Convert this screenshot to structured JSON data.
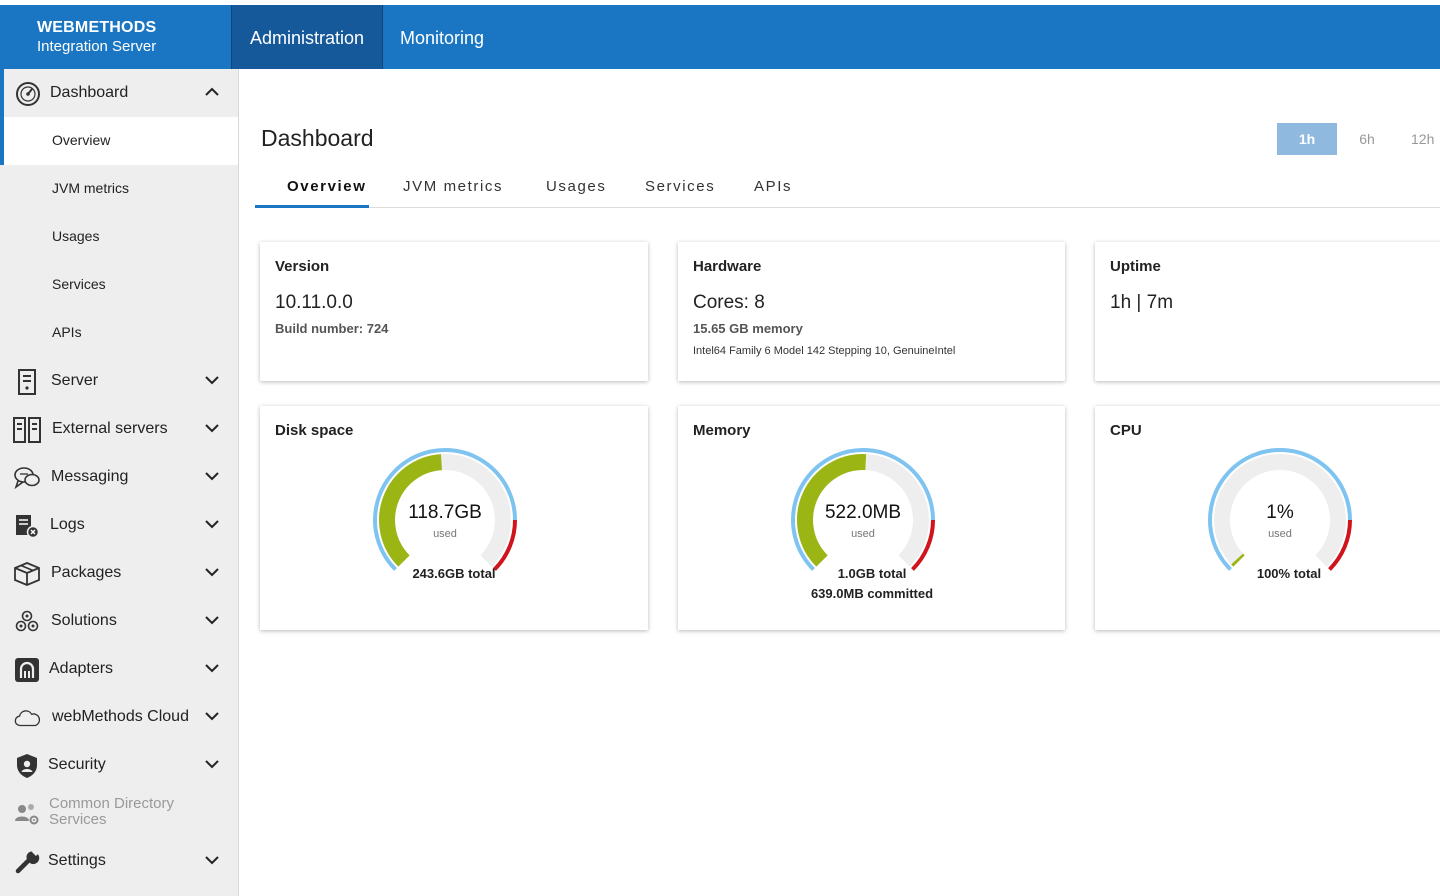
{
  "brand": {
    "line1": "WEBMETHODS",
    "line2": "Integration Server"
  },
  "header": {
    "tabs": [
      "Administration",
      "Monitoring"
    ],
    "active_tab": "Administration",
    "color": "#1a76c2"
  },
  "sidebar": {
    "dashboard": {
      "label": "Dashboard",
      "icon": "speedometer-icon"
    },
    "dashboard_sub": [
      "Overview",
      "JVM metrics",
      "Usages",
      "Services",
      "APIs"
    ],
    "selected_sub": "Overview",
    "items": [
      {
        "label": "Server",
        "icon": "server-icon"
      },
      {
        "label": "External servers",
        "icon": "external-servers-icon"
      },
      {
        "label": "Messaging",
        "icon": "messaging-icon"
      },
      {
        "label": "Logs",
        "icon": "logs-icon"
      },
      {
        "label": "Packages",
        "icon": "package-icon"
      },
      {
        "label": "Solutions",
        "icon": "solutions-icon"
      },
      {
        "label": "Adapters",
        "icon": "adapter-icon"
      },
      {
        "label": "webMethods Cloud",
        "icon": "cloud-icon"
      },
      {
        "label": "Security",
        "icon": "shield-icon"
      },
      {
        "label": "Common Directory Services",
        "icon": "directory-services-icon",
        "disabled": true
      },
      {
        "label": "Settings",
        "icon": "wrench-icon"
      }
    ]
  },
  "main": {
    "title": "Dashboard",
    "time_ranges": [
      "1h",
      "6h",
      "12h"
    ],
    "selected_range": "1h",
    "tabs": [
      "Overview",
      "JVM metrics",
      "Usages",
      "Services",
      "APIs"
    ],
    "active_tab": "Overview"
  },
  "cards": {
    "version": {
      "title": "Version",
      "value": "10.11.0.0",
      "build": "Build number: 724"
    },
    "hardware": {
      "title": "Hardware",
      "cores": "Cores: 8",
      "memory": "15.65 GB memory",
      "cpu": "Intel64 Family 6 Model 142 Stepping 10, GenuineIntel"
    },
    "uptime": {
      "title": "Uptime",
      "value": "1h | 7m"
    },
    "disk": {
      "title": "Disk space",
      "value": "118.7GB",
      "used_label": "used",
      "total": "243.6GB total",
      "used_fraction": 0.487
    },
    "memory": {
      "title": "Memory",
      "value": "522.0MB",
      "used_label": "used",
      "total": "1.0GB total",
      "committed": "639.0MB committed",
      "used_fraction": 0.51
    },
    "cpu": {
      "title": "CPU",
      "value": "1%",
      "used_label": "used",
      "total": "100% total",
      "used_fraction": 0.01
    }
  },
  "colors": {
    "gauge_fill": "#9bb514",
    "gauge_track": "#eeeeee",
    "gauge_outer": "#7fc4f0",
    "gauge_danger": "#d0141c"
  }
}
